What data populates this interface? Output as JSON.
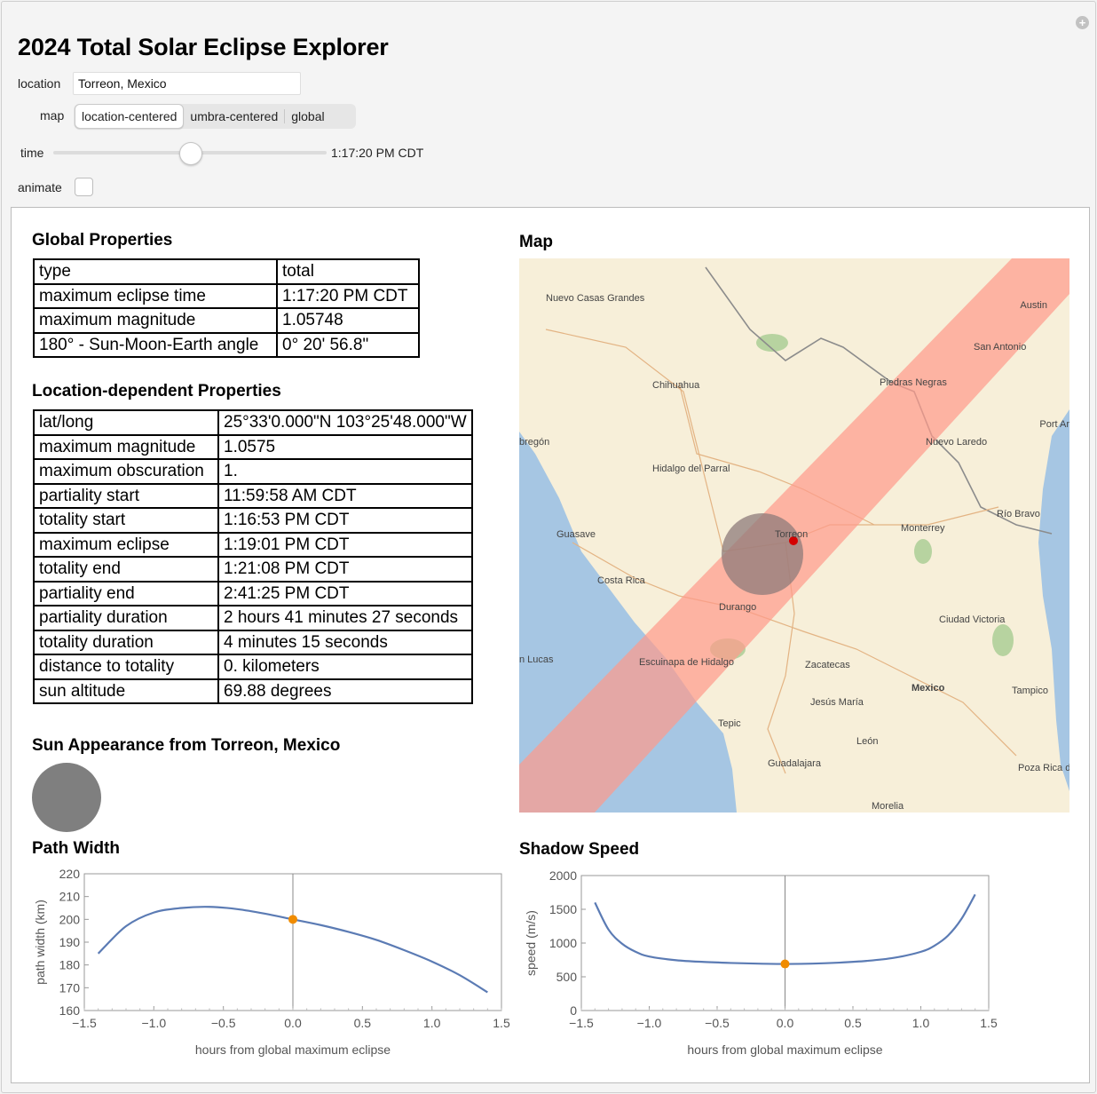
{
  "app": {
    "title": "2024 Total Solar Eclipse Explorer"
  },
  "controls": {
    "location_label": "location",
    "location_value": "Torreon, Mexico",
    "map_label": "map",
    "map_options": [
      "location-centered",
      "umbra-centered",
      "global"
    ],
    "map_selected": "location-centered",
    "time_label": "time",
    "time_value": "1:17:20 PM CDT",
    "time_slider_fraction": 0.5,
    "animate_label": "animate",
    "animate_checked": false
  },
  "global": {
    "title": "Global Properties",
    "rows": [
      [
        "type",
        "total"
      ],
      [
        "maximum eclipse time",
        "1:17:20 PM CDT"
      ],
      [
        "maximum magnitude",
        "1.05748"
      ],
      [
        "180° - Sun-Moon-Earth angle",
        "0° 20' 56.8\""
      ]
    ]
  },
  "location": {
    "title": "Location-dependent Properties",
    "rows": [
      [
        "lat/long",
        "25°33'0.000\"N 103°25'48.000\"W"
      ],
      [
        "maximum magnitude",
        "1.0575"
      ],
      [
        "maximum obscuration",
        "1."
      ],
      [
        "partiality start",
        "11:59:58 AM CDT"
      ],
      [
        "totality start",
        "1:16:53 PM CDT"
      ],
      [
        "maximum eclipse",
        "1:19:01 PM CDT"
      ],
      [
        "totality end",
        "1:21:08 PM CDT"
      ],
      [
        "partiality end",
        "2:41:25 PM CDT"
      ],
      [
        "partiality duration",
        "2 hours 41 minutes 27 seconds"
      ],
      [
        "totality duration",
        "4 minutes 15 seconds"
      ],
      [
        "distance to totality",
        "0. kilometers"
      ],
      [
        "sun altitude",
        "69.88 degrees"
      ]
    ]
  },
  "sun": {
    "title": "Sun Appearance from Torreon, Mexico",
    "disk_color": "#7f7f7f"
  },
  "map": {
    "title": "Map",
    "labels": [
      "Nuevo Casas Grandes",
      "Austin",
      "San Antonio",
      "Chihuahua",
      "Piedras Negras",
      "Port Ar",
      "bregón",
      "Nuevo Laredo",
      "Hidalgo del Parral",
      "Río Bravo",
      "Guasave",
      "Torreon",
      "Monterrey",
      "Costa Rica",
      "Durango",
      "Ciudad Victoria",
      "n Lucas",
      "Escuinapa de Hidalgo",
      "Zacatecas",
      "Mexico",
      "Tampico",
      "Jesús María",
      "Tepic",
      "León",
      "Guadalajara",
      "Poza Rica de H",
      "Morelia"
    ],
    "colors": {
      "land": "#f7efd9",
      "water": "#a6c6e3",
      "path": "#ff9a8a",
      "umbra": "#8e7b7a",
      "marker": "#d40000",
      "vegetation": "#b7d3a0"
    }
  },
  "path_width": {
    "title": "Path Width",
    "chart_data": {
      "type": "line",
      "title": "Path Width",
      "xlabel": "hours from global maximum eclipse",
      "ylabel": "path width (km)",
      "xlim": [
        -1.5,
        1.5
      ],
      "ylim": [
        160,
        220
      ],
      "xticks": [
        "−1.5",
        "−1.0",
        "−0.5",
        "0.0",
        "0.5",
        "1.0",
        "1.5"
      ],
      "yticks": [
        "160",
        "170",
        "180",
        "190",
        "200",
        "210",
        "220"
      ],
      "x": [
        -1.4,
        -1.2,
        -1.0,
        -0.8,
        -0.6,
        -0.4,
        -0.2,
        0.0,
        0.2,
        0.4,
        0.6,
        0.8,
        1.0,
        1.2,
        1.4
      ],
      "y": [
        185,
        197,
        203,
        205,
        205.5,
        204.5,
        202.5,
        200,
        197.5,
        194.5,
        191,
        186.5,
        181.5,
        175.5,
        168
      ],
      "marker": {
        "x": 0.0,
        "y": 200
      },
      "line_color": "#5b7bb4",
      "marker_color": "#f08c00"
    }
  },
  "shadow_speed": {
    "title": "Shadow Speed",
    "chart_data": {
      "type": "line",
      "title": "Shadow Speed",
      "xlabel": "hours from global maximum eclipse",
      "ylabel": "speed (m/s)",
      "xlim": [
        -1.5,
        1.5
      ],
      "ylim": [
        0,
        2000
      ],
      "xticks": [
        "−1.5",
        "−1.0",
        "−0.5",
        "0.0",
        "0.5",
        "1.0",
        "1.5"
      ],
      "yticks": [
        "0",
        "500",
        "1000",
        "1500",
        "2000"
      ],
      "x": [
        -1.4,
        -1.3,
        -1.2,
        -1.1,
        -1.0,
        -0.8,
        -0.6,
        -0.4,
        -0.2,
        0.0,
        0.2,
        0.4,
        0.6,
        0.8,
        1.0,
        1.1,
        1.2,
        1.3,
        1.4
      ],
      "y": [
        1600,
        1200,
        990,
        870,
        800,
        745,
        720,
        705,
        695,
        690,
        695,
        710,
        735,
        780,
        870,
        960,
        1110,
        1360,
        1720
      ],
      "marker": {
        "x": 0.0,
        "y": 690
      },
      "line_color": "#5b7bb4",
      "marker_color": "#f08c00"
    }
  }
}
